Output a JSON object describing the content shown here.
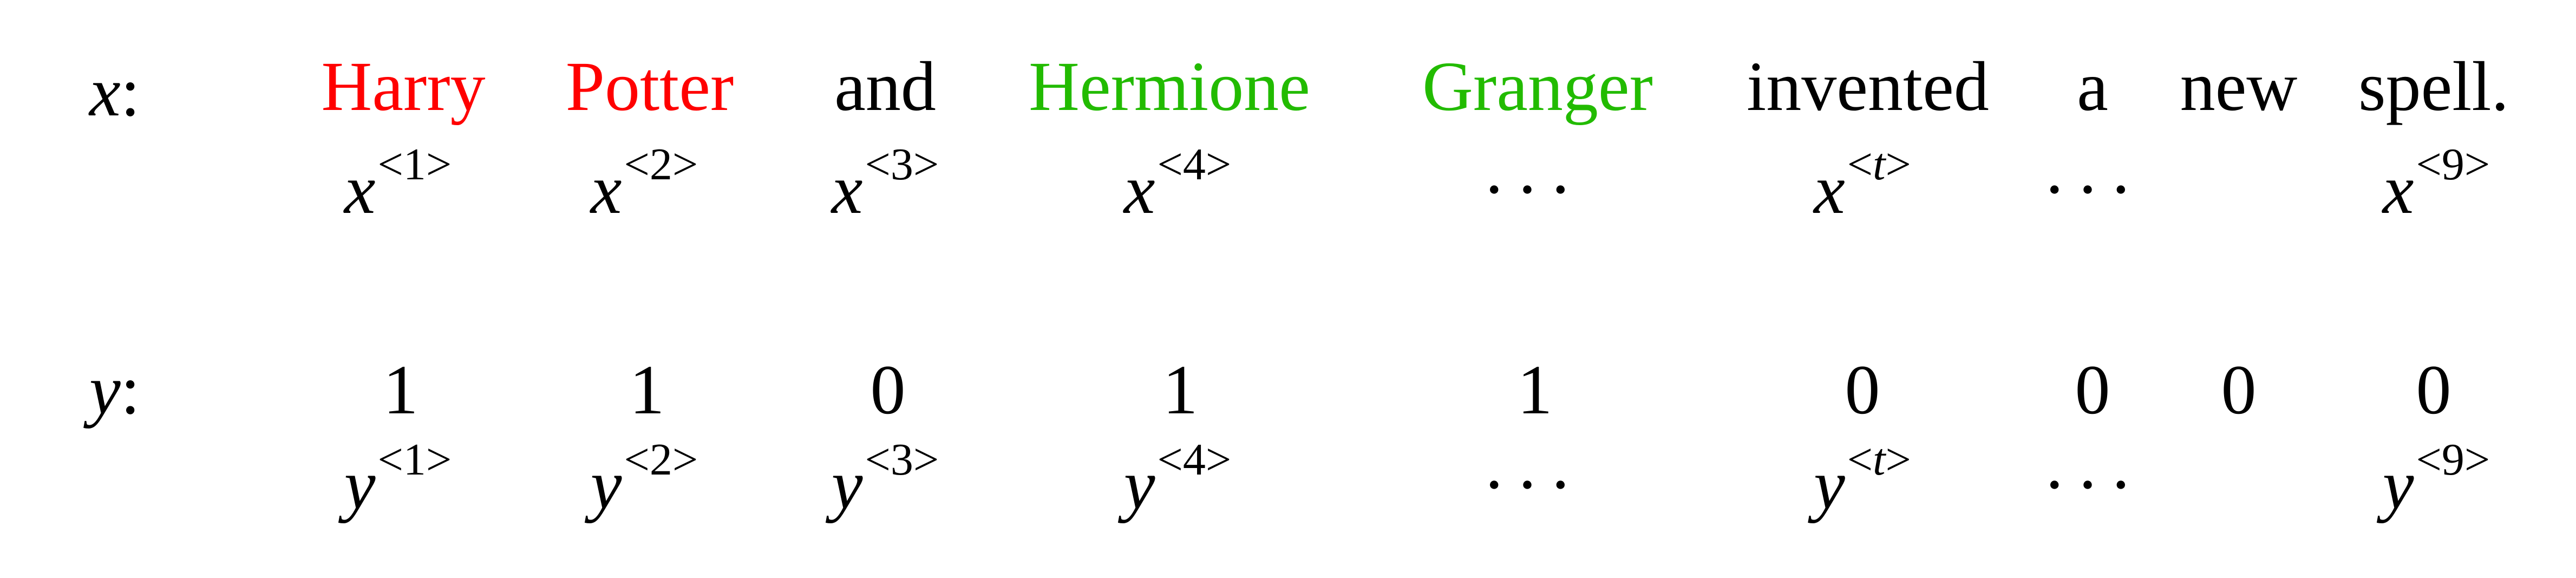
{
  "x_row": {
    "label": "x",
    "colon": ":",
    "words": [
      {
        "text": "Harry",
        "color": "#ff0000"
      },
      {
        "text": "Potter",
        "color": "#ff0000"
      },
      {
        "text": "and",
        "color": "#000000"
      },
      {
        "text": "Hermione",
        "color": "#22bb00"
      },
      {
        "text": "Granger",
        "color": "#22bb00"
      },
      {
        "text": "invented",
        "color": "#000000"
      },
      {
        "text": "a",
        "color": "#000000"
      },
      {
        "text": "new",
        "color": "#000000"
      },
      {
        "text": "spell.",
        "color": "#000000"
      }
    ],
    "symbols": [
      {
        "base": "x",
        "open": "<",
        "index": "1",
        "close": ">"
      },
      {
        "base": "x",
        "open": "<",
        "index": "2",
        "close": ">"
      },
      {
        "base": "x",
        "open": "<",
        "index": "3",
        "close": ">"
      },
      {
        "base": "x",
        "open": "<",
        "index": "4",
        "close": ">"
      },
      {
        "dots": "···"
      },
      {
        "base": "x",
        "open": "<",
        "index": "t",
        "close": ">"
      },
      {
        "dots": "···"
      },
      {
        "base": "x",
        "open": "<",
        "index": "9",
        "close": ">"
      }
    ]
  },
  "y_row": {
    "label": "y",
    "colon": ":",
    "values": [
      "1",
      "1",
      "0",
      "1",
      "1",
      "0",
      "0",
      "0",
      "0"
    ],
    "symbols": [
      {
        "base": "y",
        "open": "<",
        "index": "1",
        "close": ">"
      },
      {
        "base": "y",
        "open": "<",
        "index": "2",
        "close": ">"
      },
      {
        "base": "y",
        "open": "<",
        "index": "3",
        "close": ">"
      },
      {
        "base": "y",
        "open": "<",
        "index": "4",
        "close": ">"
      },
      {
        "dots": "···"
      },
      {
        "base": "y",
        "open": "<",
        "index": "t",
        "close": ">"
      },
      {
        "dots": "···"
      },
      {
        "base": "y",
        "open": "<",
        "index": "9",
        "close": ">"
      }
    ]
  }
}
